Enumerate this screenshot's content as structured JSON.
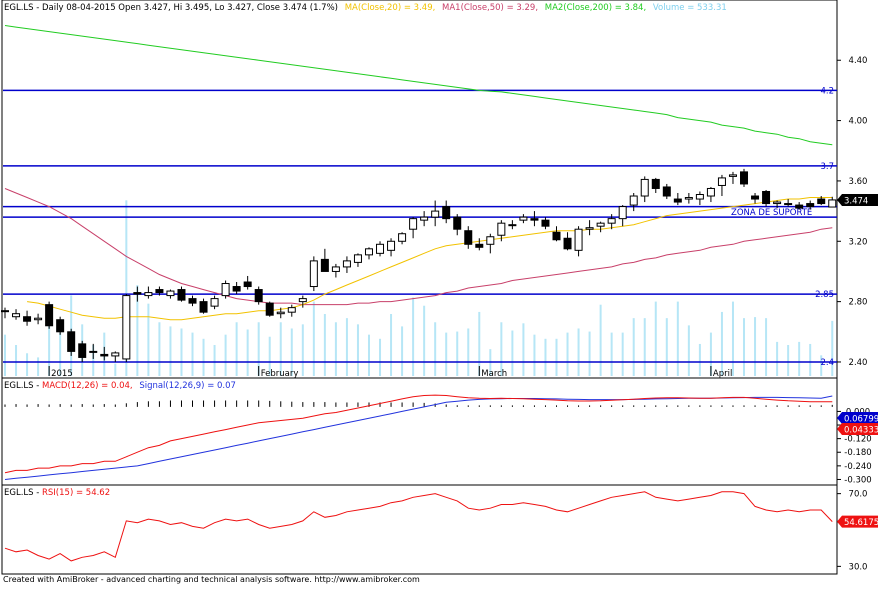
{
  "header": {
    "main_title": "EGL.LS - Daily 08-04-2015 Open 3.427, Hi 3.495, Lo 3.427, Close 3.474 (1.7%)",
    "ma20_label": "MA(Close,20) = 3.49,",
    "ma50_label": "MA1(Close,50) = 3.29,",
    "ma200_label": "MA2(Close,200) = 3.84,",
    "volume_label": "Volume = 533.31",
    "macd_prefix": "EGL.LS - ",
    "macd_label": "MACD(12,26) = 0.04,",
    "signal_label": "Signal(12,26,9) = 0.07",
    "rsi_prefix": "EGL.LS - ",
    "rsi_label": "RSI(15) = 54.62"
  },
  "footer": {
    "text": "Created with AmiBroker - advanced charting and technical analysis software. http://www.amibroker.com"
  },
  "colors": {
    "up": "#ffffff",
    "down": "#000000",
    "ma20": "#f2c200",
    "ma50": "#c8406a",
    "ma200": "#22cc22",
    "volume": "#b6e6f6",
    "hline": "#0000cc",
    "macd": "#ee1111",
    "signal": "#2233dd",
    "rsi": "#ee1111",
    "price_badge": "#000000",
    "macd_badge_a": "#0000cc",
    "macd_badge_b": "#ee1111",
    "rsi_badge": "#ee1111"
  },
  "chart_data": [
    {
      "type": "candlestick",
      "title": "EGL.LS - Daily",
      "ylim": [
        2.36,
        4.68
      ],
      "yticks": [
        2.4,
        2.8,
        3.2,
        3.6,
        4.0,
        4.4
      ],
      "ytick_labels": [
        "2.40",
        "2.80",
        "3.20",
        "3.60",
        "4.00",
        "4.40"
      ],
      "date_labels": [
        {
          "index": 4,
          "text": "2015"
        },
        {
          "index": 23,
          "text": "February"
        },
        {
          "index": 43,
          "text": "March"
        },
        {
          "index": 64,
          "text": "April"
        }
      ],
      "last_price": "3.474",
      "levels": [
        {
          "value": 4.2,
          "label": "4.2"
        },
        {
          "value": 3.7,
          "label": "3.7"
        },
        {
          "value": 3.43,
          "label": ""
        },
        {
          "value": 3.36,
          "label": ""
        },
        {
          "value": 2.85,
          "label": "2.85"
        },
        {
          "value": 2.4,
          "label": "2.4"
        }
      ],
      "annotation": "ZONA DE SUPORTE",
      "ohlc": [
        [
          2.74,
          2.76,
          2.69,
          2.74
        ],
        [
          2.7,
          2.75,
          2.68,
          2.72
        ],
        [
          2.7,
          2.74,
          2.64,
          2.67
        ],
        [
          2.68,
          2.72,
          2.65,
          2.69
        ],
        [
          2.78,
          2.8,
          2.62,
          2.64
        ],
        [
          2.68,
          2.7,
          2.58,
          2.6
        ],
        [
          2.6,
          2.62,
          2.44,
          2.47
        ],
        [
          2.52,
          2.54,
          2.4,
          2.43
        ],
        [
          2.47,
          2.52,
          2.42,
          2.47
        ],
        [
          2.45,
          2.5,
          2.41,
          2.44
        ],
        [
          2.44,
          2.47,
          2.4,
          2.46
        ],
        [
          2.42,
          2.85,
          2.4,
          2.84
        ],
        [
          2.86,
          2.9,
          2.8,
          2.85
        ],
        [
          2.84,
          2.9,
          2.82,
          2.86
        ],
        [
          2.88,
          2.9,
          2.84,
          2.86
        ],
        [
          2.84,
          2.88,
          2.82,
          2.87
        ],
        [
          2.88,
          2.9,
          2.8,
          2.81
        ],
        [
          2.82,
          2.84,
          2.77,
          2.79
        ],
        [
          2.8,
          2.82,
          2.72,
          2.73
        ],
        [
          2.77,
          2.84,
          2.75,
          2.82
        ],
        [
          2.84,
          2.94,
          2.82,
          2.92
        ],
        [
          2.9,
          2.93,
          2.85,
          2.87
        ],
        [
          2.93,
          2.97,
          2.88,
          2.9
        ],
        [
          2.88,
          2.9,
          2.78,
          2.8
        ],
        [
          2.79,
          2.8,
          2.7,
          2.71
        ],
        [
          2.72,
          2.76,
          2.69,
          2.73
        ],
        [
          2.73,
          2.78,
          2.7,
          2.76
        ],
        [
          2.8,
          2.84,
          2.76,
          2.82
        ],
        [
          2.9,
          3.1,
          2.87,
          3.07
        ],
        [
          3.08,
          3.15,
          3.0,
          3.0
        ],
        [
          3.0,
          3.05,
          2.96,
          3.03
        ],
        [
          3.03,
          3.1,
          2.99,
          3.07
        ],
        [
          3.06,
          3.12,
          3.03,
          3.11
        ],
        [
          3.11,
          3.16,
          3.08,
          3.15
        ],
        [
          3.12,
          3.2,
          3.1,
          3.18
        ],
        [
          3.14,
          3.22,
          3.1,
          3.2
        ],
        [
          3.2,
          3.26,
          3.18,
          3.25
        ],
        [
          3.28,
          3.36,
          3.22,
          3.35
        ],
        [
          3.34,
          3.4,
          3.3,
          3.36
        ],
        [
          3.36,
          3.47,
          3.3,
          3.4
        ],
        [
          3.43,
          3.47,
          3.32,
          3.35
        ],
        [
          3.36,
          3.38,
          3.24,
          3.28
        ],
        [
          3.27,
          3.3,
          3.15,
          3.18
        ],
        [
          3.18,
          3.22,
          3.14,
          3.16
        ],
        [
          3.18,
          3.25,
          3.12,
          3.23
        ],
        [
          3.24,
          3.34,
          3.2,
          3.32
        ],
        [
          3.31,
          3.34,
          3.28,
          3.31
        ],
        [
          3.34,
          3.38,
          3.32,
          3.36
        ],
        [
          3.35,
          3.4,
          3.3,
          3.34
        ],
        [
          3.34,
          3.36,
          3.28,
          3.3
        ],
        [
          3.26,
          3.3,
          3.2,
          3.21
        ],
        [
          3.22,
          3.26,
          3.14,
          3.15
        ],
        [
          3.14,
          3.3,
          3.1,
          3.28
        ],
        [
          3.28,
          3.34,
          3.24,
          3.29
        ],
        [
          3.3,
          3.33,
          3.26,
          3.32
        ],
        [
          3.32,
          3.38,
          3.28,
          3.35
        ],
        [
          3.35,
          3.44,
          3.3,
          3.43
        ],
        [
          3.44,
          3.52,
          3.4,
          3.5
        ],
        [
          3.5,
          3.63,
          3.46,
          3.61
        ],
        [
          3.61,
          3.62,
          3.52,
          3.55
        ],
        [
          3.56,
          3.58,
          3.48,
          3.5
        ],
        [
          3.48,
          3.52,
          3.44,
          3.46
        ],
        [
          3.48,
          3.52,
          3.45,
          3.49
        ],
        [
          3.48,
          3.53,
          3.44,
          3.51
        ],
        [
          3.5,
          3.56,
          3.46,
          3.55
        ],
        [
          3.57,
          3.64,
          3.5,
          3.62
        ],
        [
          3.63,
          3.66,
          3.58,
          3.64
        ],
        [
          3.66,
          3.68,
          3.56,
          3.58
        ],
        [
          3.5,
          3.52,
          3.45,
          3.48
        ],
        [
          3.53,
          3.54,
          3.43,
          3.45
        ],
        [
          3.45,
          3.47,
          3.42,
          3.46
        ],
        [
          3.45,
          3.48,
          3.43,
          3.45
        ],
        [
          3.44,
          3.46,
          3.41,
          3.42
        ],
        [
          3.45,
          3.47,
          3.41,
          3.43
        ],
        [
          3.48,
          3.5,
          3.44,
          3.45
        ],
        [
          3.427,
          3.495,
          3.427,
          3.474
        ]
      ],
      "series": [
        {
          "name": "MA(Close,20)",
          "values": [
            null,
            null,
            2.8,
            2.79,
            2.77,
            2.75,
            2.73,
            2.71,
            2.7,
            2.69,
            2.69,
            2.7,
            2.7,
            2.7,
            2.69,
            2.68,
            2.68,
            2.69,
            2.7,
            2.71,
            2.72,
            2.72,
            2.73,
            2.74,
            2.74,
            2.75,
            2.76,
            2.78,
            2.81,
            2.85,
            2.88,
            2.91,
            2.94,
            2.97,
            3.0,
            3.03,
            3.06,
            3.09,
            3.12,
            3.15,
            3.17,
            3.18,
            3.19,
            3.2,
            3.21,
            3.22,
            3.23,
            3.24,
            3.25,
            3.26,
            3.27,
            3.27,
            3.27,
            3.28,
            3.28,
            3.29,
            3.3,
            3.31,
            3.33,
            3.35,
            3.37,
            3.38,
            3.39,
            3.4,
            3.41,
            3.42,
            3.43,
            3.44,
            3.45,
            3.46,
            3.47,
            3.48,
            3.48,
            3.49,
            3.49,
            3.49
          ]
        },
        {
          "name": "MA1(Close,50)",
          "values": [
            3.55,
            3.52,
            3.49,
            3.46,
            3.43,
            3.39,
            3.35,
            3.3,
            3.25,
            3.2,
            3.15,
            3.1,
            3.06,
            3.02,
            2.98,
            2.95,
            2.92,
            2.9,
            2.88,
            2.86,
            2.84,
            2.82,
            2.81,
            2.8,
            2.79,
            2.79,
            2.79,
            2.78,
            2.78,
            2.78,
            2.78,
            2.78,
            2.79,
            2.79,
            2.8,
            2.8,
            2.81,
            2.82,
            2.83,
            2.84,
            2.86,
            2.87,
            2.89,
            2.9,
            2.91,
            2.92,
            2.94,
            2.95,
            2.96,
            2.97,
            2.98,
            2.99,
            3.0,
            3.01,
            3.02,
            3.03,
            3.05,
            3.06,
            3.08,
            3.09,
            3.11,
            3.12,
            3.13,
            3.14,
            3.16,
            3.17,
            3.18,
            3.2,
            3.21,
            3.22,
            3.23,
            3.24,
            3.25,
            3.26,
            3.28,
            3.29
          ]
        },
        {
          "name": "MA2(Close,200)",
          "values": [
            4.63,
            4.62,
            4.61,
            4.6,
            4.59,
            4.58,
            4.57,
            4.56,
            4.55,
            4.54,
            4.53,
            4.52,
            4.51,
            4.5,
            4.49,
            4.48,
            4.47,
            4.46,
            4.45,
            4.44,
            4.43,
            4.42,
            4.41,
            4.4,
            4.39,
            4.38,
            4.37,
            4.36,
            4.35,
            4.34,
            4.33,
            4.32,
            4.31,
            4.3,
            4.29,
            4.28,
            4.27,
            4.26,
            4.25,
            4.24,
            4.23,
            4.22,
            4.21,
            4.2,
            4.195,
            4.19,
            4.18,
            4.17,
            4.16,
            4.15,
            4.14,
            4.13,
            4.12,
            4.11,
            4.1,
            4.09,
            4.08,
            4.07,
            4.06,
            4.05,
            4.04,
            4.02,
            4.01,
            4.0,
            3.99,
            3.97,
            3.96,
            3.95,
            3.93,
            3.92,
            3.91,
            3.89,
            3.88,
            3.86,
            3.85,
            3.84
          ]
        },
        {
          "name": "Volume",
          "values": [
            400,
            300,
            220,
            180,
            600,
            420,
            780,
            500,
            300,
            420,
            120,
            1700,
            880,
            700,
            520,
            480,
            460,
            420,
            360,
            300,
            400,
            520,
            450,
            520,
            380,
            520,
            460,
            500,
            720,
            600,
            520,
            560,
            500,
            400,
            360,
            600,
            480,
            760,
            680,
            520,
            420,
            430,
            460,
            620,
            260,
            520,
            440,
            510,
            400,
            360,
            360,
            420,
            460,
            430,
            690,
            420,
            420,
            560,
            560,
            720,
            560,
            720,
            490,
            310,
            420,
            620,
            720,
            560,
            570,
            560,
            330,
            300,
            330,
            310,
            200,
            533.31
          ]
        }
      ],
      "volume_ylim": [
        0,
        1800
      ]
    },
    {
      "type": "line",
      "title": "MACD(12,26)",
      "ylim": [
        -0.32,
        0.09
      ],
      "yticks": [
        0.0,
        -0.06,
        -0.12,
        -0.18,
        -0.24,
        -0.3
      ],
      "ytick_labels": [
        "0.000",
        "-0.060",
        "-0.120",
        "-0.180",
        "-0.240",
        "-0.300"
      ],
      "badges": [
        "0.067990",
        "0.043339"
      ],
      "series": [
        {
          "name": "MACD(12,26)",
          "values": [
            -0.27,
            -0.26,
            -0.26,
            -0.25,
            -0.25,
            -0.24,
            -0.24,
            -0.23,
            -0.23,
            -0.22,
            -0.22,
            -0.2,
            -0.18,
            -0.16,
            -0.15,
            -0.13,
            -0.12,
            -0.11,
            -0.1,
            -0.09,
            -0.08,
            -0.07,
            -0.06,
            -0.05,
            -0.045,
            -0.04,
            -0.035,
            -0.03,
            -0.02,
            -0.01,
            -0.005,
            0.005,
            0.015,
            0.025,
            0.035,
            0.045,
            0.055,
            0.065,
            0.07,
            0.072,
            0.07,
            0.065,
            0.06,
            0.058,
            0.057,
            0.058,
            0.057,
            0.056,
            0.054,
            0.052,
            0.05,
            0.047,
            0.046,
            0.046,
            0.047,
            0.049,
            0.051,
            0.054,
            0.057,
            0.059,
            0.06,
            0.06,
            0.059,
            0.058,
            0.058,
            0.06,
            0.062,
            0.062,
            0.058,
            0.054,
            0.05,
            0.047,
            0.045,
            0.043,
            0.043,
            0.043
          ]
        },
        {
          "name": "Signal(12,26,9)",
          "values": [
            -0.3,
            -0.295,
            -0.29,
            -0.285,
            -0.28,
            -0.275,
            -0.27,
            -0.265,
            -0.26,
            -0.255,
            -0.25,
            -0.245,
            -0.24,
            -0.23,
            -0.22,
            -0.21,
            -0.2,
            -0.19,
            -0.18,
            -0.17,
            -0.16,
            -0.15,
            -0.14,
            -0.13,
            -0.12,
            -0.11,
            -0.1,
            -0.09,
            -0.08,
            -0.07,
            -0.06,
            -0.05,
            -0.04,
            -0.03,
            -0.02,
            -0.01,
            0.0,
            0.01,
            0.02,
            0.03,
            0.04,
            0.045,
            0.05,
            0.053,
            0.055,
            0.056,
            0.057,
            0.057,
            0.057,
            0.056,
            0.055,
            0.054,
            0.053,
            0.052,
            0.052,
            0.052,
            0.052,
            0.053,
            0.054,
            0.055,
            0.056,
            0.057,
            0.058,
            0.058,
            0.058,
            0.059,
            0.06,
            0.061,
            0.062,
            0.062,
            0.062,
            0.061,
            0.06,
            0.059,
            0.058,
            0.068
          ]
        }
      ]
    },
    {
      "type": "line",
      "title": "RSI(15)",
      "ylim": [
        28,
        72
      ],
      "yticks": [
        30.0,
        70.0
      ],
      "ytick_labels": [
        "30.0",
        "70.0"
      ],
      "badge": "54.6175",
      "series": [
        {
          "name": "RSI(15)",
          "values": [
            40,
            38,
            39,
            36,
            34,
            37,
            33,
            35,
            36,
            38,
            35,
            55,
            54,
            56,
            55,
            53,
            54,
            52,
            51,
            54,
            56,
            55,
            56,
            53,
            51,
            52,
            53,
            55,
            60,
            57,
            58,
            60,
            61,
            62,
            63,
            65,
            66,
            68,
            69,
            70,
            68,
            66,
            62,
            61,
            62,
            64,
            64,
            65,
            64,
            63,
            61,
            60,
            62,
            64,
            66,
            68,
            69,
            70,
            71,
            68,
            67,
            66,
            67,
            68,
            69,
            71,
            71,
            70,
            63,
            61,
            60,
            61,
            60,
            61,
            61,
            54.62
          ]
        }
      ]
    }
  ]
}
